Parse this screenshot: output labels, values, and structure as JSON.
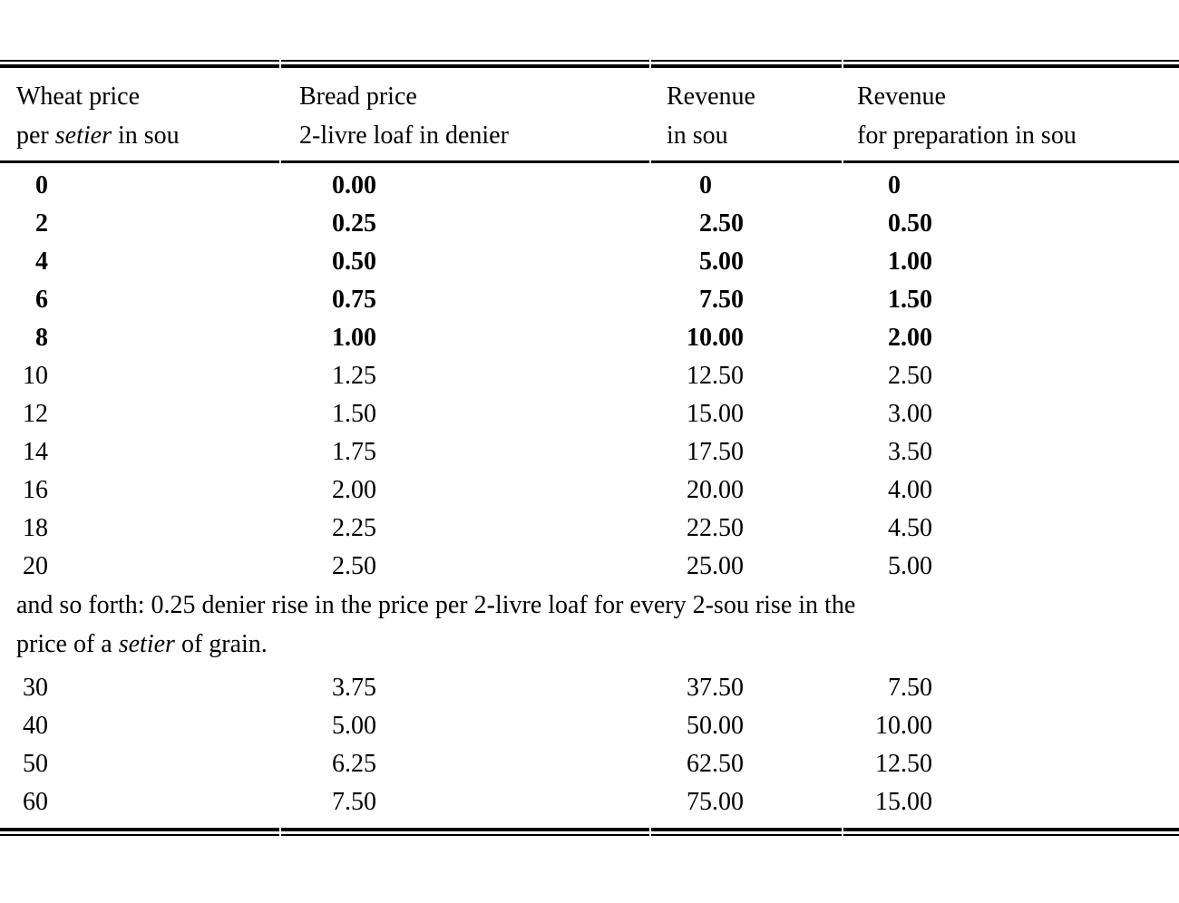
{
  "colors": {
    "ink": "#000000",
    "paper": "#ffffff"
  },
  "table": {
    "header": {
      "columns": [
        {
          "line1": "Wheat price",
          "line2_segments": [
            {
              "text": "per "
            },
            {
              "text": "setier",
              "italic": true
            },
            {
              "text": " in sou"
            }
          ]
        },
        {
          "line1": "Bread price",
          "line2_segments": [
            {
              "text": "2-livre loaf in denier"
            }
          ]
        },
        {
          "line1": "Revenue",
          "line2_segments": [
            {
              "text": "in sou"
            }
          ]
        },
        {
          "line1": "Revenue",
          "line2_segments": [
            {
              "text": "for preparation in sou"
            }
          ]
        }
      ]
    },
    "rows_main": [
      {
        "bold": true,
        "cells": [
          "0",
          "0.00",
          "0",
          "0"
        ]
      },
      {
        "bold": true,
        "cells": [
          "2",
          "0.25",
          "2.50",
          "0.50"
        ]
      },
      {
        "bold": true,
        "cells": [
          "4",
          "0.50",
          "5.00",
          "1.00"
        ]
      },
      {
        "bold": true,
        "cells": [
          "6",
          "0.75",
          "7.50",
          "1.50"
        ]
      },
      {
        "bold": true,
        "cells": [
          "8",
          "1.00",
          "10.00",
          "2.00"
        ]
      },
      {
        "bold": false,
        "cells": [
          "10",
          "1.25",
          "12.50",
          "2.50"
        ]
      },
      {
        "bold": false,
        "cells": [
          "12",
          "1.50",
          "15.00",
          "3.00"
        ]
      },
      {
        "bold": false,
        "cells": [
          "14",
          "1.75",
          "17.50",
          "3.50"
        ]
      },
      {
        "bold": false,
        "cells": [
          "16",
          "2.00",
          "20.00",
          "4.00"
        ]
      },
      {
        "bold": false,
        "cells": [
          "18",
          "2.25",
          "22.50",
          "4.50"
        ]
      },
      {
        "bold": false,
        "cells": [
          "20",
          "2.50",
          "25.00",
          "5.00"
        ]
      }
    ],
    "note_lines": [
      [
        {
          "text": "and so forth: 0.25 denier rise in the price per 2-livre loaf for every 2-sou rise in the"
        }
      ],
      [
        {
          "text": "price of a "
        },
        {
          "text": "setier",
          "italic": true
        },
        {
          "text": " of grain."
        }
      ]
    ],
    "rows_extended": [
      {
        "bold": false,
        "cells": [
          "30",
          "3.75",
          "37.50",
          "7.50"
        ]
      },
      {
        "bold": false,
        "cells": [
          "40",
          "5.00",
          "50.00",
          "10.00"
        ]
      },
      {
        "bold": false,
        "cells": [
          "50",
          "6.25",
          "62.50",
          "12.50"
        ]
      },
      {
        "bold": false,
        "cells": [
          "60",
          "7.50",
          "75.00",
          "15.00"
        ]
      }
    ]
  }
}
